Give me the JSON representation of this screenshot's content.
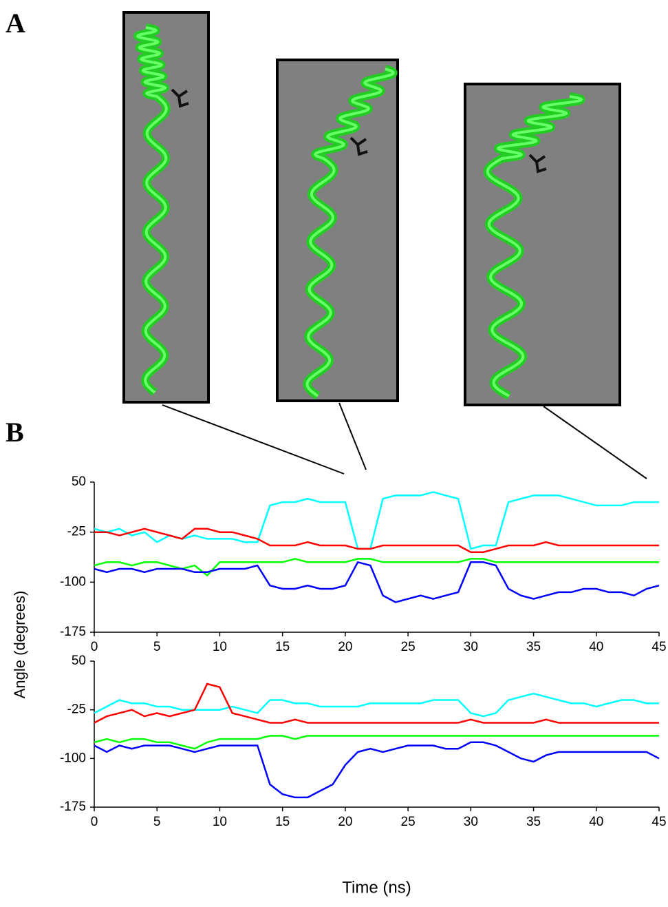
{
  "panel_labels": [
    "A",
    "B"
  ],
  "chart_data": [
    {
      "type": "line",
      "ylabel": "Angle (degrees)",
      "x": [
        0,
        1,
        2,
        3,
        4,
        5,
        6,
        7,
        8,
        9,
        10,
        11,
        12,
        13,
        14,
        15,
        16,
        17,
        18,
        19,
        20,
        21,
        22,
        23,
        24,
        25,
        26,
        27,
        28,
        29,
        30,
        31,
        32,
        33,
        34,
        35,
        36,
        37,
        38,
        39,
        40,
        41,
        42,
        43,
        44,
        45
      ],
      "xlim": [
        0,
        45
      ],
      "xticks": [
        0,
        5,
        10,
        15,
        20,
        25,
        30,
        35,
        40,
        45
      ],
      "ylim": [
        -175,
        50
      ],
      "yticks": [
        50,
        -25,
        -100,
        -175
      ],
      "series": [
        {
          "color": "#00ffff",
          "values": [
            -20,
            -25,
            -20,
            -30,
            -25,
            -40,
            -30,
            -35,
            -30,
            -35,
            -35,
            -35,
            -40,
            -40,
            15,
            20,
            20,
            25,
            20,
            20,
            20,
            -50,
            -50,
            25,
            30,
            30,
            30,
            35,
            30,
            25,
            -50,
            -45,
            -45,
            20,
            25,
            30,
            30,
            30,
            25,
            20,
            15,
            15,
            15,
            20,
            20,
            20
          ]
        },
        {
          "color": "#ff0000",
          "values": [
            -25,
            -25,
            -30,
            -25,
            -20,
            -25,
            -30,
            -35,
            -20,
            -20,
            -25,
            -25,
            -30,
            -35,
            -45,
            -45,
            -45,
            -40,
            -45,
            -45,
            -45,
            -50,
            -50,
            -45,
            -45,
            -45,
            -45,
            -45,
            -45,
            -45,
            -55,
            -55,
            -50,
            -45,
            -45,
            -45,
            -40,
            -45,
            -45,
            -45,
            -45,
            -45,
            -45,
            -45,
            -45,
            -45
          ]
        },
        {
          "color": "#00ff00",
          "values": [
            -75,
            -70,
            -70,
            -75,
            -70,
            -70,
            -75,
            -80,
            -75,
            -90,
            -70,
            -70,
            -70,
            -70,
            -70,
            -70,
            -65,
            -70,
            -70,
            -70,
            -70,
            -65,
            -65,
            -70,
            -70,
            -70,
            -70,
            -70,
            -70,
            -70,
            -65,
            -65,
            -70,
            -70,
            -70,
            -70,
            -70,
            -70,
            -70,
            -70,
            -70,
            -70,
            -70,
            -70,
            -70,
            -70
          ]
        },
        {
          "color": "#0000ff",
          "values": [
            -80,
            -85,
            -80,
            -80,
            -85,
            -80,
            -80,
            -80,
            -85,
            -85,
            -80,
            -80,
            -80,
            -75,
            -105,
            -110,
            -110,
            -105,
            -110,
            -110,
            -105,
            -70,
            -75,
            -120,
            -130,
            -125,
            -120,
            -125,
            -120,
            -115,
            -70,
            -70,
            -75,
            -110,
            -120,
            -125,
            -120,
            -115,
            -115,
            -110,
            -110,
            -115,
            -115,
            -120,
            -110,
            -105
          ]
        }
      ]
    },
    {
      "type": "line",
      "xlabel": "Time (ns)",
      "x": [
        0,
        1,
        2,
        3,
        4,
        5,
        6,
        7,
        8,
        9,
        10,
        11,
        12,
        13,
        14,
        15,
        16,
        17,
        18,
        19,
        20,
        21,
        22,
        23,
        24,
        25,
        26,
        27,
        28,
        29,
        30,
        31,
        32,
        33,
        34,
        35,
        36,
        37,
        38,
        39,
        40,
        41,
        42,
        43,
        44,
        45
      ],
      "xlim": [
        0,
        45
      ],
      "xticks": [
        0,
        5,
        10,
        15,
        20,
        25,
        30,
        35,
        40,
        45
      ],
      "ylim": [
        -175,
        50
      ],
      "yticks": [
        50,
        -25,
        -100,
        -175
      ],
      "series": [
        {
          "color": "#00ffff",
          "values": [
            -30,
            -20,
            -10,
            -15,
            -15,
            -20,
            -20,
            -25,
            -25,
            -25,
            -25,
            -20,
            -25,
            -30,
            -10,
            -10,
            -15,
            -15,
            -20,
            -20,
            -20,
            -20,
            -15,
            -15,
            -15,
            -15,
            -15,
            -10,
            -10,
            -10,
            -30,
            -35,
            -30,
            -10,
            -5,
            0,
            -5,
            -10,
            -15,
            -15,
            -20,
            -15,
            -10,
            -10,
            -15,
            -15
          ]
        },
        {
          "color": "#ff0000",
          "values": [
            -45,
            -35,
            -30,
            -25,
            -35,
            -30,
            -35,
            -30,
            -25,
            15,
            10,
            -30,
            -35,
            -40,
            -45,
            -45,
            -40,
            -45,
            -45,
            -45,
            -45,
            -45,
            -45,
            -45,
            -45,
            -45,
            -45,
            -45,
            -45,
            -45,
            -40,
            -45,
            -45,
            -45,
            -45,
            -45,
            -40,
            -45,
            -45,
            -45,
            -45,
            -45,
            -45,
            -45,
            -45,
            -45
          ]
        },
        {
          "color": "#00ff00",
          "values": [
            -75,
            -70,
            -75,
            -70,
            -70,
            -75,
            -75,
            -80,
            -85,
            -75,
            -70,
            -70,
            -70,
            -70,
            -65,
            -65,
            -70,
            -65,
            -65,
            -65,
            -65,
            -65,
            -65,
            -65,
            -65,
            -65,
            -65,
            -65,
            -65,
            -65,
            -65,
            -65,
            -65,
            -65,
            -65,
            -65,
            -65,
            -65,
            -65,
            -65,
            -65,
            -65,
            -65,
            -65,
            -65,
            -65
          ]
        },
        {
          "color": "#0000ff",
          "values": [
            -80,
            -90,
            -80,
            -85,
            -80,
            -80,
            -80,
            -85,
            -90,
            -85,
            -80,
            -80,
            -80,
            -80,
            -140,
            -155,
            -160,
            -160,
            -150,
            -140,
            -110,
            -90,
            -85,
            -90,
            -85,
            -80,
            -80,
            -80,
            -85,
            -85,
            -75,
            -75,
            -80,
            -90,
            -100,
            -105,
            -95,
            -90,
            -90,
            -90,
            -90,
            -90,
            -90,
            -90,
            -90,
            -100
          ]
        }
      ]
    }
  ]
}
